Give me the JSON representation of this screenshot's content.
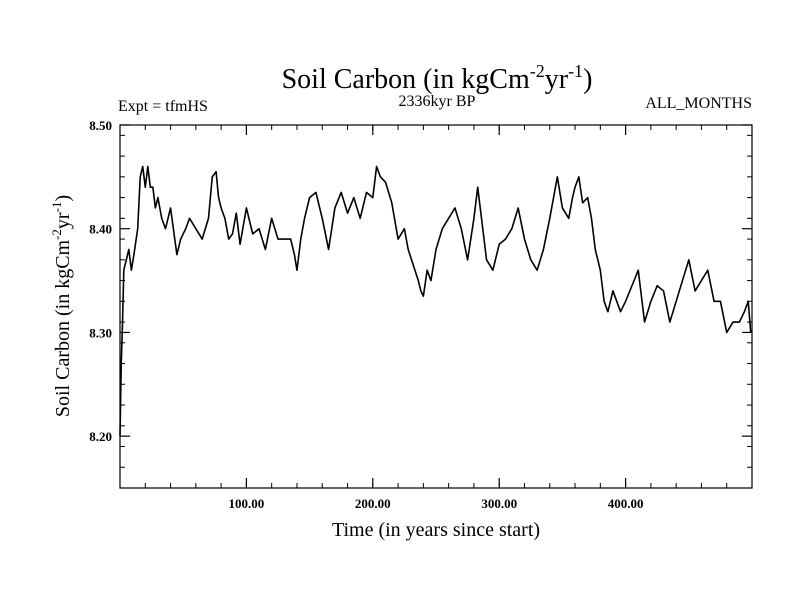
{
  "chart_data": {
    "type": "line",
    "title": {
      "base": "Soil Carbon (in kgCm",
      "exp1": "-2",
      "mid": "yr",
      "exp2": "-1",
      "end": ")"
    },
    "subtitle_left": "Expt = tfmHS",
    "subtitle_center": "2336kyr BP",
    "subtitle_right": "ALL_MONTHS",
    "xlabel": "Time (in years since start)",
    "ylabel": {
      "base": "Soil Carbon (in kgCm",
      "exp1": "-2",
      "mid": "yr",
      "exp2": "-1",
      "end": ")"
    },
    "xlim": [
      0,
      500
    ],
    "ylim": [
      8.15,
      8.5
    ],
    "x_ticks": [
      {
        "value": 100,
        "label": "100.00"
      },
      {
        "value": 200,
        "label": "200.00"
      },
      {
        "value": 300,
        "label": "300.00"
      },
      {
        "value": 400,
        "label": "400.00"
      }
    ],
    "y_ticks": [
      {
        "value": 8.2,
        "label": "8.20"
      },
      {
        "value": 8.3,
        "label": "8.30"
      },
      {
        "value": 8.4,
        "label": "8.40"
      },
      {
        "value": 8.5,
        "label": "8.50"
      }
    ],
    "x_minor_step": 20,
    "y_minor_step": 0.02,
    "grid": false,
    "line_color": "#000000",
    "series": [
      {
        "x": [
          0,
          1,
          2,
          3,
          5,
          7,
          9,
          11,
          14,
          16,
          18,
          20,
          22,
          24,
          26,
          28,
          30,
          33,
          36,
          40,
          45,
          48,
          52,
          55,
          60,
          65,
          70,
          73,
          76,
          78,
          80,
          83,
          86,
          89,
          92,
          95,
          100,
          105,
          110,
          115,
          120,
          125,
          130,
          135,
          138,
          140,
          143,
          146,
          150,
          155,
          160,
          165,
          170,
          175,
          180,
          185,
          190,
          195,
          200,
          203,
          206,
          210,
          215,
          220,
          225,
          228,
          232,
          236,
          238,
          240,
          243,
          246,
          250,
          255,
          260,
          265,
          270,
          275,
          280,
          283,
          286,
          290,
          295,
          300,
          305,
          310,
          315,
          320,
          325,
          330,
          335,
          340,
          343,
          346,
          350,
          355,
          358,
          360,
          363,
          366,
          370,
          373,
          376,
          380,
          383,
          386,
          390,
          393,
          396,
          400,
          405,
          410,
          415,
          420,
          425,
          430,
          435,
          440,
          445,
          450,
          455,
          460,
          465,
          470,
          475,
          480,
          485,
          490,
          494,
          497,
          499
        ],
        "y": [
          8.2,
          8.27,
          8.31,
          8.36,
          8.37,
          8.38,
          8.36,
          8.375,
          8.4,
          8.45,
          8.46,
          8.44,
          8.46,
          8.44,
          8.44,
          8.42,
          8.43,
          8.41,
          8.4,
          8.42,
          8.375,
          8.39,
          8.4,
          8.41,
          8.4,
          8.39,
          8.41,
          8.45,
          8.455,
          8.43,
          8.42,
          8.41,
          8.39,
          8.395,
          8.415,
          8.385,
          8.42,
          8.395,
          8.4,
          8.38,
          8.41,
          8.39,
          8.39,
          8.39,
          8.375,
          8.36,
          8.39,
          8.41,
          8.43,
          8.435,
          8.41,
          8.38,
          8.42,
          8.435,
          8.415,
          8.43,
          8.41,
          8.435,
          8.43,
          8.46,
          8.45,
          8.445,
          8.425,
          8.39,
          8.4,
          8.38,
          8.365,
          8.35,
          8.34,
          8.335,
          8.36,
          8.35,
          8.38,
          8.4,
          8.41,
          8.42,
          8.4,
          8.37,
          8.41,
          8.44,
          8.41,
          8.37,
          8.36,
          8.385,
          8.39,
          8.4,
          8.42,
          8.39,
          8.37,
          8.36,
          8.38,
          8.41,
          8.43,
          8.45,
          8.42,
          8.41,
          8.43,
          8.44,
          8.45,
          8.425,
          8.43,
          8.41,
          8.38,
          8.36,
          8.33,
          8.32,
          8.34,
          8.33,
          8.32,
          8.33,
          8.345,
          8.36,
          8.31,
          8.33,
          8.345,
          8.34,
          8.31,
          8.33,
          8.35,
          8.37,
          8.34,
          8.35,
          8.36,
          8.33,
          8.33,
          8.3,
          8.31,
          8.31,
          8.32,
          8.33,
          8.3
        ]
      }
    ]
  }
}
